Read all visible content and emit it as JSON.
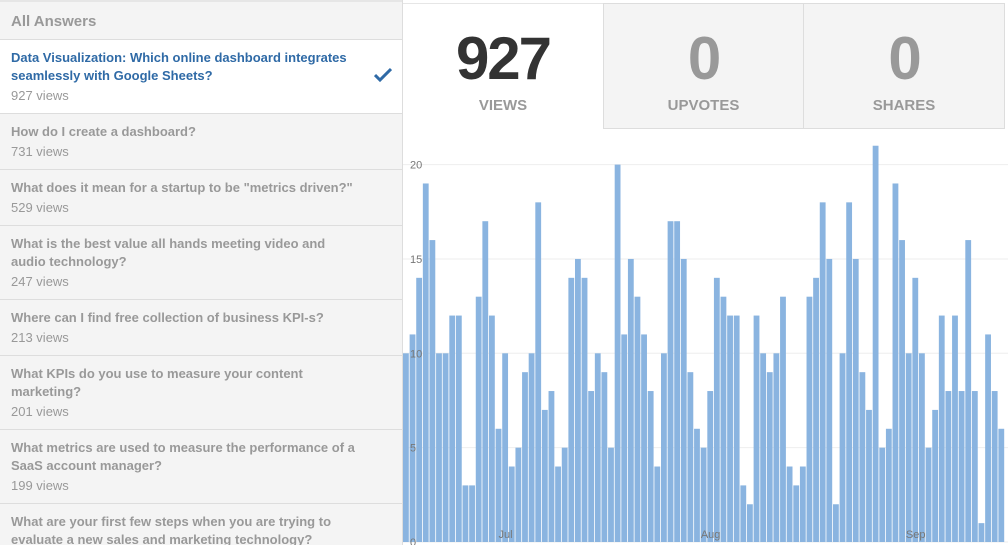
{
  "sidebar": {
    "title": "All Answers",
    "items": [
      {
        "question": "Data Visualization: Which online dashboard integrates seamlessly with Google Sheets?",
        "views": "927 views",
        "selected": true
      },
      {
        "question": "How do I create a dashboard?",
        "views": "731 views"
      },
      {
        "question": "What does it mean for a startup to be \"metrics driven?\"",
        "views": "529 views"
      },
      {
        "question": "What is the best value all hands meeting video and audio technology?",
        "views": "247 views"
      },
      {
        "question": "Where can I find free collection of business KPI-s?",
        "views": "213 views"
      },
      {
        "question": "What KPIs do you use to measure your content marketing?",
        "views": "201 views"
      },
      {
        "question": "What metrics are used to measure the performance of a SaaS account manager?",
        "views": "199 views"
      },
      {
        "question": "What are your first few steps when you are trying to evaluate a new sales and marketing technology?",
        "views": ""
      }
    ],
    "selected_icon": "checkmark-icon"
  },
  "stats": [
    {
      "value": "927",
      "label": "VIEWS",
      "active": true
    },
    {
      "value": "0",
      "label": "UPVOTES"
    },
    {
      "value": "0",
      "label": "SHARES"
    }
  ],
  "colors": {
    "bar": "#8ab4e0",
    "accent": "#2f6aa6",
    "grid": "#eeeeee"
  },
  "chart_data": {
    "type": "bar",
    "title": "",
    "xlabel": "",
    "ylabel": "",
    "ylim": [
      0,
      21
    ],
    "yticks": [
      0,
      5,
      10,
      15,
      20
    ],
    "grid": true,
    "x_tick_labels": [
      {
        "label": "Jul",
        "category": "Jul 1"
      },
      {
        "label": "Aug",
        "category": "Aug 1"
      },
      {
        "label": "Sep",
        "category": "Sep 1"
      }
    ],
    "categories": [
      "Jun 16",
      "Jun 17",
      "Jun 18",
      "Jun 19",
      "Jun 20",
      "Jun 21",
      "Jun 22",
      "Jun 23",
      "Jun 24",
      "Jun 25",
      "Jun 26",
      "Jun 27",
      "Jun 28",
      "Jun 29",
      "Jun 30",
      "Jul 1",
      "Jul 2",
      "Jul 3",
      "Jul 4",
      "Jul 5",
      "Jul 6",
      "Jul 7",
      "Jul 8",
      "Jul 9",
      "Jul 10",
      "Jul 11",
      "Jul 12",
      "Jul 13",
      "Jul 14",
      "Jul 15",
      "Jul 16",
      "Jul 17",
      "Jul 18",
      "Jul 19",
      "Jul 20",
      "Jul 21",
      "Jul 22",
      "Jul 23",
      "Jul 24",
      "Jul 25",
      "Jul 26",
      "Jul 27",
      "Jul 28",
      "Jul 29",
      "Jul 30",
      "Jul 31",
      "Aug 1",
      "Aug 2",
      "Aug 3",
      "Aug 4",
      "Aug 5",
      "Aug 6",
      "Aug 7",
      "Aug 8",
      "Aug 9",
      "Aug 10",
      "Aug 11",
      "Aug 12",
      "Aug 13",
      "Aug 14",
      "Aug 15",
      "Aug 16",
      "Aug 17",
      "Aug 18",
      "Aug 19",
      "Aug 20",
      "Aug 21",
      "Aug 22",
      "Aug 23",
      "Aug 24",
      "Aug 25",
      "Aug 26",
      "Aug 27",
      "Aug 28",
      "Aug 29",
      "Aug 30",
      "Aug 31",
      "Sep 1",
      "Sep 2",
      "Sep 3",
      "Sep 4",
      "Sep 5",
      "Sep 6",
      "Sep 7",
      "Sep 8",
      "Sep 9",
      "Sep 10",
      "Sep 11",
      "Sep 12",
      "Sep 13",
      "Sep 14"
    ],
    "values": [
      10,
      11,
      14,
      19,
      16,
      10,
      10,
      12,
      12,
      3,
      3,
      13,
      17,
      12,
      6,
      10,
      4,
      5,
      9,
      10,
      18,
      7,
      8,
      4,
      5,
      14,
      15,
      14,
      8,
      10,
      9,
      5,
      20,
      11,
      15,
      13,
      11,
      8,
      4,
      10,
      17,
      17,
      15,
      9,
      6,
      5,
      8,
      14,
      13,
      12,
      12,
      3,
      2,
      12,
      10,
      9,
      10,
      13,
      4,
      3,
      4,
      13,
      14,
      18,
      15,
      2,
      10,
      18,
      15,
      9,
      7,
      21,
      5,
      6,
      19,
      16,
      10,
      14,
      10,
      5,
      7,
      12,
      8,
      12,
      8,
      16,
      8,
      1,
      11,
      8,
      6
    ]
  }
}
